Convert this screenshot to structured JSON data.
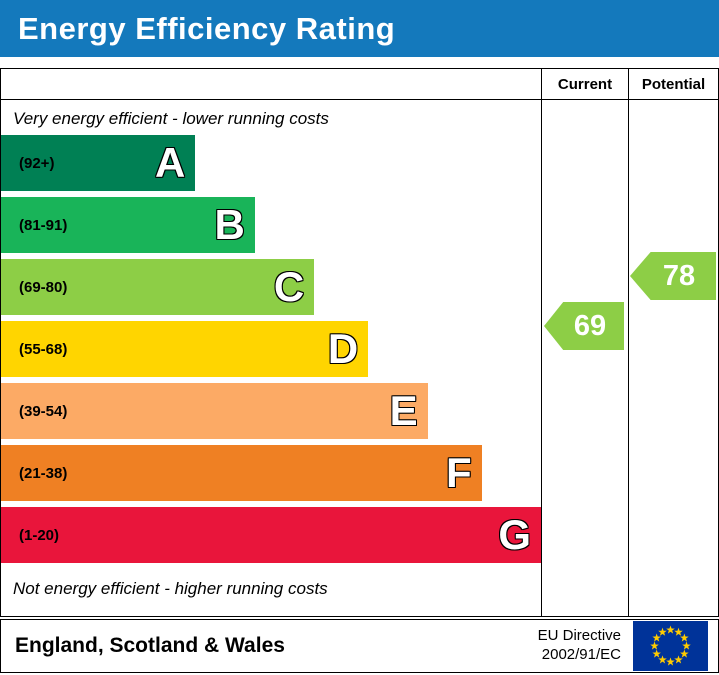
{
  "header": {
    "title": "Energy Efficiency Rating",
    "bg_color": "#1479bc"
  },
  "columns": {
    "current_label": "Current",
    "potential_label": "Potential"
  },
  "chart": {
    "top_note": "Very energy efficient - lower running costs",
    "bottom_note": "Not energy efficient - higher running costs",
    "bands": [
      {
        "letter": "A",
        "range": "(92+)",
        "color": "#008054",
        "width_pct": 36
      },
      {
        "letter": "B",
        "range": "(81-91)",
        "color": "#19b459",
        "width_pct": 47
      },
      {
        "letter": "C",
        "range": "(69-80)",
        "color": "#8dce46",
        "width_pct": 58
      },
      {
        "letter": "D",
        "range": "(55-68)",
        "color": "#ffd500",
        "width_pct": 68
      },
      {
        "letter": "E",
        "range": "(39-54)",
        "color": "#fcaa65",
        "width_pct": 79
      },
      {
        "letter": "F",
        "range": "(21-38)",
        "color": "#ef8023",
        "width_pct": 89
      },
      {
        "letter": "G",
        "range": "(1-20)",
        "color": "#e9153b",
        "width_pct": 100
      }
    ],
    "current": {
      "value": "69",
      "color": "#8dce46"
    },
    "potential": {
      "value": "78",
      "color": "#8dce46"
    }
  },
  "footer": {
    "region": "England, Scotland & Wales",
    "directive_line1": "EU Directive",
    "directive_line2": "2002/91/EC",
    "flag_blue": "#003399",
    "flag_star_yellow": "#ffcc00"
  },
  "chart_data": {
    "type": "bar",
    "title": "Energy Efficiency Rating",
    "categories": [
      "A",
      "B",
      "C",
      "D",
      "E",
      "F",
      "G"
    ],
    "band_ranges": [
      "92+",
      "81-91",
      "69-80",
      "55-68",
      "39-54",
      "21-38",
      "1-20"
    ],
    "band_colors": [
      "#008054",
      "#19b459",
      "#8dce46",
      "#ffd500",
      "#fcaa65",
      "#ef8023",
      "#e9153b"
    ],
    "values": [
      36,
      47,
      58,
      68,
      79,
      89,
      100
    ],
    "current": 69,
    "potential": 78,
    "notes": [
      "Very energy efficient - lower running costs",
      "Not energy efficient - higher running costs"
    ],
    "region": "England, Scotland & Wales"
  }
}
